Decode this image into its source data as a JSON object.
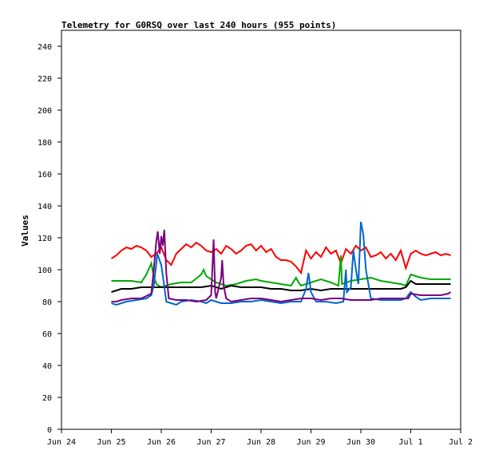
{
  "chart_data": {
    "type": "line",
    "title": "Telemetry for G0RSQ over last 240 hours (955 points)",
    "xlabel": "",
    "ylabel": "Values",
    "x_unit": "days",
    "xlim": [
      0,
      8
    ],
    "ylim": [
      0,
      250
    ],
    "x_ticks": [
      {
        "value": 0,
        "label": "Jun 24"
      },
      {
        "value": 1,
        "label": "Jun 25"
      },
      {
        "value": 2,
        "label": "Jun 26"
      },
      {
        "value": 3,
        "label": "Jun 27"
      },
      {
        "value": 4,
        "label": "Jun 28"
      },
      {
        "value": 5,
        "label": "Jun 29"
      },
      {
        "value": 6,
        "label": "Jun 30"
      },
      {
        "value": 7,
        "label": "Jul 1"
      },
      {
        "value": 8,
        "label": "Jul 2"
      }
    ],
    "y_ticks": [
      0,
      20,
      40,
      60,
      80,
      100,
      120,
      140,
      160,
      180,
      200,
      220,
      240
    ],
    "grid": false,
    "legend": "none",
    "series": [
      {
        "color": "#ff0000",
        "points": [
          [
            1.0,
            107
          ],
          [
            1.1,
            109
          ],
          [
            1.2,
            112
          ],
          [
            1.3,
            114
          ],
          [
            1.4,
            113
          ],
          [
            1.5,
            115
          ],
          [
            1.6,
            114
          ],
          [
            1.7,
            112
          ],
          [
            1.8,
            108
          ],
          [
            1.9,
            110
          ],
          [
            2.0,
            114
          ],
          [
            2.1,
            106
          ],
          [
            2.2,
            103
          ],
          [
            2.3,
            110
          ],
          [
            2.4,
            113
          ],
          [
            2.5,
            116
          ],
          [
            2.6,
            114
          ],
          [
            2.7,
            117
          ],
          [
            2.8,
            115
          ],
          [
            2.9,
            112
          ],
          [
            3.0,
            111
          ],
          [
            3.1,
            113
          ],
          [
            3.2,
            110
          ],
          [
            3.3,
            115
          ],
          [
            3.4,
            113
          ],
          [
            3.5,
            110
          ],
          [
            3.6,
            112
          ],
          [
            3.7,
            115
          ],
          [
            3.8,
            116
          ],
          [
            3.9,
            112
          ],
          [
            4.0,
            115
          ],
          [
            4.1,
            111
          ],
          [
            4.2,
            113
          ],
          [
            4.3,
            108
          ],
          [
            4.4,
            106
          ],
          [
            4.5,
            106
          ],
          [
            4.6,
            105
          ],
          [
            4.7,
            102
          ],
          [
            4.8,
            98
          ],
          [
            4.9,
            112
          ],
          [
            5.0,
            107
          ],
          [
            5.1,
            111
          ],
          [
            5.2,
            108
          ],
          [
            5.3,
            114
          ],
          [
            5.4,
            110
          ],
          [
            5.5,
            112
          ],
          [
            5.6,
            104
          ],
          [
            5.7,
            113
          ],
          [
            5.8,
            110
          ],
          [
            5.9,
            115
          ],
          [
            6.0,
            112
          ],
          [
            6.1,
            114
          ],
          [
            6.2,
            108
          ],
          [
            6.3,
            109
          ],
          [
            6.4,
            111
          ],
          [
            6.5,
            107
          ],
          [
            6.6,
            110
          ],
          [
            6.7,
            106
          ],
          [
            6.8,
            112
          ],
          [
            6.9,
            101
          ],
          [
            7.0,
            110
          ],
          [
            7.1,
            112
          ],
          [
            7.2,
            110
          ],
          [
            7.3,
            109
          ],
          [
            7.4,
            110
          ],
          [
            7.5,
            111
          ],
          [
            7.6,
            109
          ],
          [
            7.7,
            110
          ],
          [
            7.8,
            109
          ]
        ]
      },
      {
        "color": "#00aa00",
        "points": [
          [
            1.0,
            93
          ],
          [
            1.2,
            93
          ],
          [
            1.4,
            93
          ],
          [
            1.6,
            92
          ],
          [
            1.7,
            97
          ],
          [
            1.8,
            104
          ],
          [
            1.85,
            96
          ],
          [
            1.9,
            91
          ],
          [
            2.0,
            89
          ],
          [
            2.2,
            91
          ],
          [
            2.4,
            92
          ],
          [
            2.6,
            92
          ],
          [
            2.8,
            97
          ],
          [
            2.85,
            100
          ],
          [
            2.9,
            96
          ],
          [
            3.0,
            94
          ],
          [
            3.1,
            92
          ],
          [
            3.2,
            91
          ],
          [
            3.3,
            90
          ],
          [
            3.5,
            91
          ],
          [
            3.7,
            93
          ],
          [
            3.9,
            94
          ],
          [
            4.0,
            93
          ],
          [
            4.2,
            92
          ],
          [
            4.4,
            91
          ],
          [
            4.6,
            90
          ],
          [
            4.7,
            95
          ],
          [
            4.75,
            92
          ],
          [
            4.8,
            90
          ],
          [
            5.0,
            92
          ],
          [
            5.2,
            94
          ],
          [
            5.4,
            92
          ],
          [
            5.55,
            90
          ],
          [
            5.6,
            109
          ],
          [
            5.62,
            91
          ],
          [
            5.8,
            93
          ],
          [
            6.0,
            94
          ],
          [
            6.2,
            95
          ],
          [
            6.4,
            93
          ],
          [
            6.6,
            92
          ],
          [
            6.8,
            91
          ],
          [
            6.9,
            90
          ],
          [
            7.0,
            97
          ],
          [
            7.1,
            96
          ],
          [
            7.2,
            95
          ],
          [
            7.4,
            94
          ],
          [
            7.6,
            94
          ],
          [
            7.8,
            94
          ]
        ]
      },
      {
        "color": "#000000",
        "points": [
          [
            1.0,
            86
          ],
          [
            1.1,
            87
          ],
          [
            1.2,
            88
          ],
          [
            1.4,
            88
          ],
          [
            1.6,
            89
          ],
          [
            1.8,
            89
          ],
          [
            2.0,
            89
          ],
          [
            2.2,
            89
          ],
          [
            2.4,
            89
          ],
          [
            2.6,
            89
          ],
          [
            2.8,
            89
          ],
          [
            3.0,
            90
          ],
          [
            3.2,
            88
          ],
          [
            3.4,
            90
          ],
          [
            3.6,
            89
          ],
          [
            3.8,
            89
          ],
          [
            4.0,
            89
          ],
          [
            4.2,
            88
          ],
          [
            4.4,
            88
          ],
          [
            4.6,
            87
          ],
          [
            4.8,
            87
          ],
          [
            5.0,
            88
          ],
          [
            5.2,
            87
          ],
          [
            5.4,
            88
          ],
          [
            5.6,
            88
          ],
          [
            5.8,
            88
          ],
          [
            6.0,
            88
          ],
          [
            6.2,
            88
          ],
          [
            6.4,
            88
          ],
          [
            6.6,
            88
          ],
          [
            6.8,
            88
          ],
          [
            6.9,
            89
          ],
          [
            7.0,
            93
          ],
          [
            7.1,
            91
          ],
          [
            7.2,
            91
          ],
          [
            7.4,
            91
          ],
          [
            7.6,
            91
          ],
          [
            7.8,
            91
          ]
        ]
      },
      {
        "color": "#0066cc",
        "points": [
          [
            1.0,
            79
          ],
          [
            1.1,
            78
          ],
          [
            1.2,
            79
          ],
          [
            1.3,
            80
          ],
          [
            1.5,
            81
          ],
          [
            1.7,
            82
          ],
          [
            1.8,
            84
          ],
          [
            1.85,
            90
          ],
          [
            1.9,
            104
          ],
          [
            1.92,
            110
          ],
          [
            2.0,
            103
          ],
          [
            2.05,
            92
          ],
          [
            2.1,
            80
          ],
          [
            2.2,
            79
          ],
          [
            2.3,
            78
          ],
          [
            2.4,
            80
          ],
          [
            2.6,
            81
          ],
          [
            2.8,
            80
          ],
          [
            2.9,
            79
          ],
          [
            3.0,
            81
          ],
          [
            3.1,
            80
          ],
          [
            3.2,
            79
          ],
          [
            3.4,
            79
          ],
          [
            3.6,
            80
          ],
          [
            3.8,
            80
          ],
          [
            4.0,
            81
          ],
          [
            4.2,
            80
          ],
          [
            4.4,
            79
          ],
          [
            4.6,
            80
          ],
          [
            4.8,
            80
          ],
          [
            4.9,
            88
          ],
          [
            4.95,
            98
          ],
          [
            5.0,
            86
          ],
          [
            5.1,
            80
          ],
          [
            5.3,
            80
          ],
          [
            5.5,
            79
          ],
          [
            5.65,
            80
          ],
          [
            5.7,
            100
          ],
          [
            5.72,
            86
          ],
          [
            5.8,
            89
          ],
          [
            5.85,
            112
          ],
          [
            5.9,
            100
          ],
          [
            5.95,
            91
          ],
          [
            6.0,
            130
          ],
          [
            6.05,
            122
          ],
          [
            6.1,
            100
          ],
          [
            6.2,
            82
          ],
          [
            6.4,
            81
          ],
          [
            6.6,
            81
          ],
          [
            6.8,
            81
          ],
          [
            6.9,
            82
          ],
          [
            7.0,
            86
          ],
          [
            7.1,
            83
          ],
          [
            7.2,
            81
          ],
          [
            7.4,
            82
          ],
          [
            7.6,
            82
          ],
          [
            7.8,
            82
          ]
        ]
      },
      {
        "color": "#7a0080",
        "points": [
          [
            1.0,
            80
          ],
          [
            1.1,
            80
          ],
          [
            1.2,
            81
          ],
          [
            1.4,
            82
          ],
          [
            1.6,
            82
          ],
          [
            1.8,
            85
          ],
          [
            1.85,
            100
          ],
          [
            1.9,
            118
          ],
          [
            1.93,
            124
          ],
          [
            1.97,
            110
          ],
          [
            2.0,
            121
          ],
          [
            2.03,
            115
          ],
          [
            2.06,
            125
          ],
          [
            2.1,
            98
          ],
          [
            2.15,
            82
          ],
          [
            2.3,
            81
          ],
          [
            2.5,
            81
          ],
          [
            2.7,
            80
          ],
          [
            2.9,
            81
          ],
          [
            3.0,
            84
          ],
          [
            3.05,
            119
          ],
          [
            3.08,
            86
          ],
          [
            3.1,
            82
          ],
          [
            3.2,
            95
          ],
          [
            3.22,
            106
          ],
          [
            3.25,
            90
          ],
          [
            3.3,
            82
          ],
          [
            3.4,
            80
          ],
          [
            3.6,
            81
          ],
          [
            3.8,
            82
          ],
          [
            4.0,
            82
          ],
          [
            4.2,
            81
          ],
          [
            4.4,
            80
          ],
          [
            4.6,
            81
          ],
          [
            4.8,
            82
          ],
          [
            5.0,
            82
          ],
          [
            5.2,
            81
          ],
          [
            5.4,
            82
          ],
          [
            5.6,
            82
          ],
          [
            5.8,
            81
          ],
          [
            6.0,
            81
          ],
          [
            6.2,
            81
          ],
          [
            6.4,
            82
          ],
          [
            6.6,
            82
          ],
          [
            6.8,
            82
          ],
          [
            6.95,
            82
          ],
          [
            7.0,
            85
          ],
          [
            7.2,
            84
          ],
          [
            7.4,
            84
          ],
          [
            7.6,
            84
          ],
          [
            7.75,
            85
          ],
          [
            7.8,
            86
          ]
        ]
      }
    ]
  }
}
